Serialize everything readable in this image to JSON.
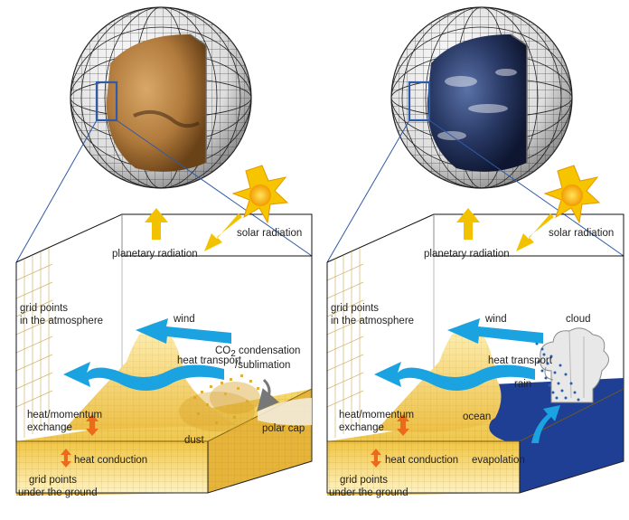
{
  "left_panel": {
    "labels": {
      "solar_radiation": "solar radiation",
      "planetary_radiation": "planetary radiation",
      "grid_atm_line1": "grid points",
      "grid_atm_line2": "in the atmosphere",
      "wind": "wind",
      "heat_transport": "heat transport",
      "co2_prefix": "CO",
      "co2_sub": "2",
      "co2_suffix": " condensation",
      "sublimation": "/sublimation",
      "heat_momentum_line1": "heat/momentum",
      "heat_momentum_line2": "exchange",
      "dust": "dust",
      "polar_cap": "polar cap",
      "heat_conduction": "heat conduction",
      "grid_ground_line1": "grid points",
      "grid_ground_line2": "under the ground"
    }
  },
  "right_panel": {
    "labels": {
      "solar_radiation": "solar radiation",
      "planetary_radiation": "planetary radiation",
      "grid_atm_line1": "grid points",
      "grid_atm_line2": "in the atmosphere",
      "wind": "wind",
      "cloud": "cloud",
      "heat_transport": "heat transport",
      "rain": "rain",
      "heat_momentum_line1": "heat/momentum",
      "heat_momentum_line2": "exchange",
      "ocean": "ocean",
      "heat_conduction": "heat conduction",
      "evapolation": "evapolation",
      "grid_ground_line1": "grid points",
      "grid_ground_line2": "under the ground"
    }
  },
  "colors": {
    "arrow_blue": "#1aa3e0",
    "arrow_yellow": "#f2c200",
    "arrow_orange": "#ec6a1c",
    "ocean_blue": "#1e3f94",
    "sand": "#f0c548",
    "mars": "#b07a3c",
    "earth": "#2a3a66"
  }
}
